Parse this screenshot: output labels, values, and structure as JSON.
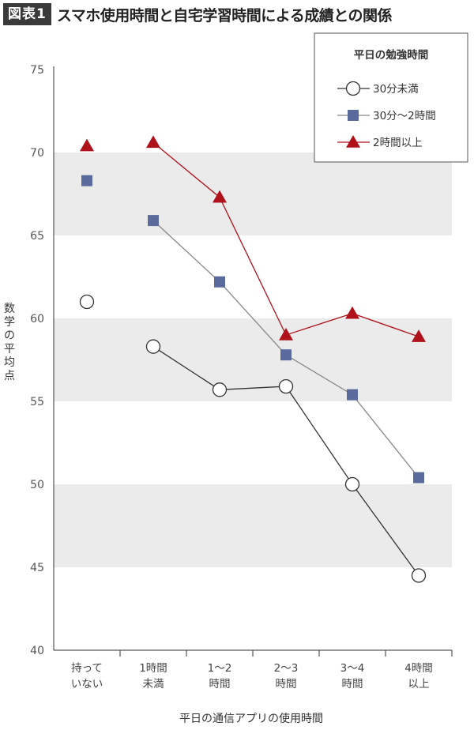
{
  "header": {
    "badge": "図表1",
    "title": "スマホ使用時間と自宅学習時間による成績との関係"
  },
  "chart_data": {
    "type": "line",
    "title": "スマホ使用時間と自宅学習時間による成績との関係",
    "xlabel": "平日の通信アプリの使用時間",
    "ylabel": "数学の平均点",
    "ylim": [
      40,
      75
    ],
    "yticks": [
      40,
      45,
      50,
      55,
      60,
      65,
      70,
      75
    ],
    "categories": [
      [
        "持って",
        "いない"
      ],
      [
        "1時間",
        "未満"
      ],
      [
        "1〜2",
        "時間"
      ],
      [
        "2〜3",
        "時間"
      ],
      [
        "3〜4",
        "時間"
      ],
      [
        "4時間",
        "以上"
      ]
    ],
    "legend": {
      "title": "平日の勉強時間",
      "position": "top-right"
    },
    "series": [
      {
        "name": "30分未満",
        "marker": "circle",
        "color": "#333333",
        "values": [
          61.0,
          58.3,
          55.7,
          55.9,
          50.0,
          44.5
        ],
        "connect_from": 1
      },
      {
        "name": "30分〜2時間",
        "marker": "square",
        "color": "#5b6a9c",
        "line_color": "#888888",
        "values": [
          68.3,
          65.9,
          62.2,
          57.8,
          55.4,
          50.4
        ],
        "connect_from": 1
      },
      {
        "name": "2時間以上",
        "marker": "triangle",
        "color": "#b0121c",
        "values": [
          70.4,
          70.6,
          67.3,
          59.0,
          60.3,
          58.9
        ],
        "connect_from": 1
      }
    ],
    "band_color": "#ebebeb"
  }
}
